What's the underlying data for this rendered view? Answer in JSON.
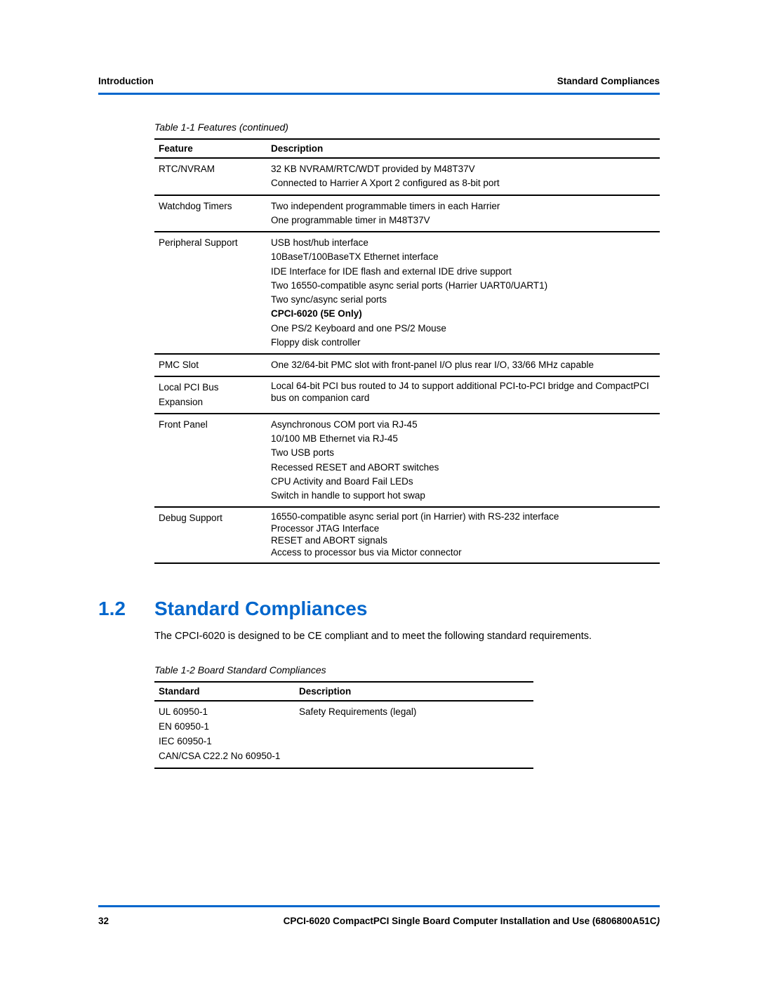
{
  "header": {
    "left": "Introduction",
    "right": "Standard Compliances"
  },
  "table1": {
    "caption": "Table 1-1 Features (continued)",
    "col1_header": "Feature",
    "col2_header": "Description",
    "rows": {
      "r0_feature": "RTC/NVRAM",
      "r0_d1": "32 KB NVRAM/RTC/WDT provided by M48T37V",
      "r0_d2": "Connected to Harrier A Xport 2 configured as 8-bit port",
      "r1_feature": "Watchdog Timers",
      "r1_d1": "Two independent programmable timers in each Harrier",
      "r1_d2": "One programmable timer in M48T37V",
      "r2_feature": "Peripheral Support",
      "r2_d1": "USB host/hub interface",
      "r2_d2": "10BaseT/100BaseTX Ethernet interface",
      "r2_d3": "IDE Interface for IDE flash and external IDE drive support",
      "r2_d4": "Two 16550-compatible async serial ports (Harrier UART0/UART1)",
      "r2_d5": "Two sync/async serial ports",
      "r2_d6": "CPCI-6020 (5E Only)",
      "r2_d7": "One PS/2 Keyboard and one PS/2 Mouse",
      "r2_d8": "Floppy disk controller",
      "r3_feature": "PMC Slot",
      "r3_d1": "One 32/64-bit PMC slot with front-panel I/O plus rear I/O, 33/66 MHz capable",
      "r4_feature_l1": "Local PCI Bus",
      "r4_feature_l2": "Expansion",
      "r4_d1": "Local 64-bit PCI bus routed to J4 to support additional PCI-to-PCI bridge and CompactPCI bus on companion card",
      "r5_feature": "Front Panel",
      "r5_d1": "Asynchronous COM port via RJ-45",
      "r5_d2": "10/100 MB Ethernet via RJ-45",
      "r5_d3": "Two USB ports",
      "r5_d4": "Recessed RESET and ABORT switches",
      "r5_d5": "CPU Activity and Board Fail LEDs",
      "r5_d6": "Switch in handle to support hot swap",
      "r6_feature": "Debug Support",
      "r6_d1": "16550-compatible async serial port (in Harrier) with RS-232 interface",
      "r6_d2": "Processor JTAG Interface",
      "r6_d3": "RESET and ABORT signals",
      "r6_d4": "Access to processor bus via Mictor connector"
    }
  },
  "section": {
    "number": "1.2",
    "title": "Standard Compliances",
    "body": "The CPCI-6020 is designed to be CE compliant and to meet the following standard requirements."
  },
  "table2": {
    "caption": "Table 1-2 Board Standard Compliances",
    "col1_header": "Standard",
    "col2_header": "Description",
    "r0_s1": "UL 60950-1",
    "r0_s2": "EN 60950-1",
    "r0_s3": "IEC 60950-1",
    "r0_s4": "CAN/CSA C22.2 No 60950-1",
    "r0_desc": "Safety Requirements (legal)"
  },
  "footer": {
    "page": "32",
    "title_main": "CPCI-6020 CompactPCI Single Board Computer Installation and Use (6806800A51C",
    "title_ital": ")"
  }
}
